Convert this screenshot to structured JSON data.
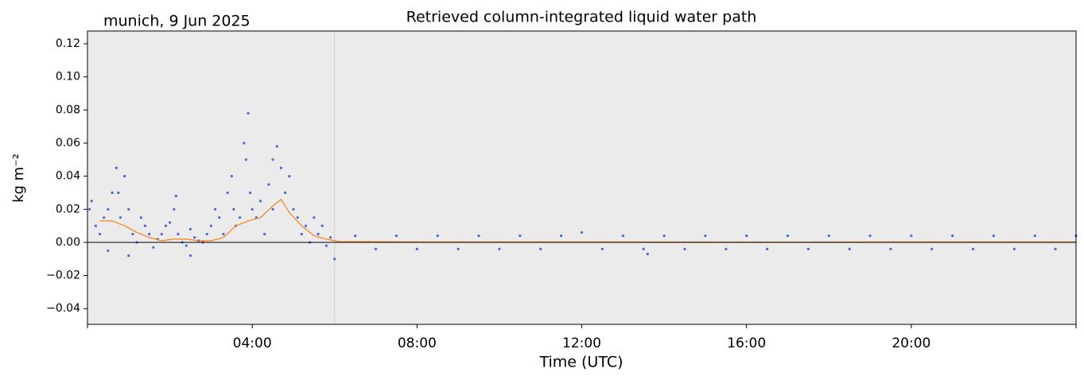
{
  "chart_data": {
    "type": "scatter",
    "title": "Retrieved column-integrated liquid water path",
    "annotation": "munich, 9 Jun 2025",
    "xlabel": "Time (UTC)",
    "ylabel": "kg m⁻²",
    "xlim": [
      0,
      24
    ],
    "ylim": [
      -0.0495,
      0.1277
    ],
    "xticks": [
      {
        "value": 0,
        "label": null
      },
      {
        "value": 4,
        "label": "04:00"
      },
      {
        "value": 8,
        "label": "08:00"
      },
      {
        "value": 12,
        "label": "12:00"
      },
      {
        "value": 16,
        "label": "16:00"
      },
      {
        "value": 20,
        "label": "20:00"
      },
      {
        "value": 24,
        "label": null
      }
    ],
    "yticks": [
      {
        "value": -0.04,
        "label": "−0.04"
      },
      {
        "value": -0.02,
        "label": "−0.02"
      },
      {
        "value": 0,
        "label": "0.00"
      },
      {
        "value": 0.02,
        "label": "0.02"
      },
      {
        "value": 0.04,
        "label": "0.04"
      },
      {
        "value": 0.06,
        "label": "0.06"
      },
      {
        "value": 0.08,
        "label": "0.08"
      },
      {
        "value": 0.1,
        "label": "0.10"
      },
      {
        "value": 0.12,
        "label": "0.12"
      }
    ],
    "background": "#ebebeb",
    "reference_lines": {
      "y": 0,
      "y_color": "#000000",
      "x": 6,
      "x_color": "#d0d0d0"
    },
    "series": [
      {
        "kind": "scatter",
        "color": "#4169e1",
        "x": [
          0.05,
          0.1,
          0.2,
          0.3,
          0.4,
          0.5,
          0.5,
          0.6,
          0.7,
          0.75,
          0.8,
          0.9,
          1.0,
          1.0,
          1.1,
          1.2,
          1.3,
          1.4,
          1.5,
          1.6,
          1.7,
          1.8,
          1.9,
          2.0,
          2.1,
          2.15,
          2.2,
          2.3,
          2.4,
          2.5,
          2.5,
          2.6,
          2.7,
          2.8,
          2.9,
          3.0,
          3.1,
          3.2,
          3.3,
          3.4,
          3.5,
          3.55,
          3.6,
          3.7,
          3.8,
          3.85,
          3.9,
          3.95,
          4.0,
          4.1,
          4.2,
          4.3,
          4.4,
          4.5,
          4.5,
          4.6,
          4.7,
          4.8,
          4.9,
          5.0,
          5.1,
          5.2,
          5.3,
          5.4,
          5.5,
          5.6,
          5.7,
          5.8,
          5.9,
          6.0,
          6.5,
          7.0,
          7.5,
          8.0,
          8.5,
          9.0,
          9.5,
          10.0,
          10.5,
          11.0,
          11.5,
          12.0,
          12.5,
          13.0,
          13.5,
          13.6,
          14.0,
          14.5,
          15.0,
          15.5,
          16.0,
          16.5,
          17.0,
          17.5,
          18.0,
          18.5,
          19.0,
          19.5,
          20.0,
          20.5,
          21.0,
          21.5,
          22.0,
          22.5,
          23.0,
          23.5,
          24.0
        ],
        "values": [
          0.02,
          0.025,
          0.01,
          0.005,
          0.015,
          0.02,
          -0.005,
          0.03,
          0.045,
          0.03,
          0.015,
          0.04,
          0.02,
          -0.008,
          0.005,
          0.0,
          0.015,
          0.01,
          0.005,
          -0.003,
          0.002,
          0.005,
          0.01,
          0.012,
          0.02,
          0.028,
          0.005,
          0.0,
          -0.002,
          0.008,
          -0.008,
          0.003,
          0.001,
          0.0,
          0.005,
          0.01,
          0.02,
          0.015,
          0.005,
          0.03,
          0.04,
          0.02,
          0.01,
          0.015,
          0.06,
          0.05,
          0.078,
          0.03,
          0.02,
          0.015,
          0.025,
          0.005,
          0.035,
          0.05,
          0.02,
          0.058,
          0.045,
          0.03,
          0.04,
          0.02,
          0.015,
          0.005,
          0.01,
          0.0,
          0.015,
          0.005,
          0.01,
          -0.002,
          0.003,
          -0.01,
          0.004,
          -0.004,
          0.004,
          -0.004,
          0.004,
          -0.004,
          0.004,
          -0.004,
          0.004,
          -0.004,
          0.004,
          0.006,
          -0.004,
          0.004,
          -0.004,
          -0.007,
          0.004,
          -0.004,
          0.004,
          -0.004,
          0.004,
          -0.004,
          0.004,
          -0.004,
          0.004,
          -0.004,
          0.004,
          -0.004,
          0.004,
          -0.004,
          0.004,
          -0.004,
          0.004,
          -0.004,
          0.004,
          -0.004,
          0.004
        ]
      },
      {
        "kind": "line",
        "color": "#ff7f0e",
        "x": [
          0.3,
          0.6,
          0.9,
          1.2,
          1.5,
          1.8,
          2.1,
          2.4,
          2.7,
          3.0,
          3.3,
          3.6,
          3.9,
          4.2,
          4.5,
          4.7,
          4.9,
          5.2,
          5.5,
          5.8,
          6.1,
          8,
          12,
          16,
          20,
          24
        ],
        "values": [
          0.013,
          0.013,
          0.01,
          0.006,
          0.003,
          0.001,
          0.002,
          0.002,
          0.001,
          0.001,
          0.003,
          0.01,
          0.013,
          0.015,
          0.022,
          0.026,
          0.018,
          0.01,
          0.004,
          0.002,
          0.0005,
          0.0003,
          0.0003,
          0.0002,
          0.0003,
          0.0003
        ]
      }
    ]
  }
}
